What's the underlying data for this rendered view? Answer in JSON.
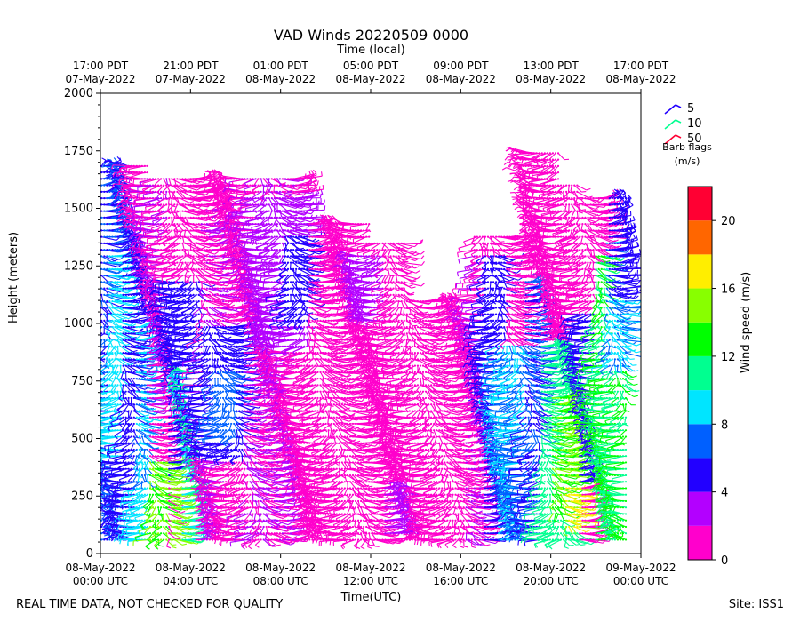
{
  "chart_data": {
    "type": "wind_barb_time_height",
    "title": "VAD Winds 20220509 0000",
    "xlabel": "Time(UTC)",
    "xlabel_top": "Time (local)",
    "ylabel": "Height (meters)",
    "ylim": [
      0,
      2000
    ],
    "yticks": [
      "0",
      "250",
      "500",
      "750",
      "1000",
      "1250",
      "1500",
      "1750",
      "2000"
    ],
    "xlim_hours_since_start": [
      0,
      24
    ],
    "xticks_bottom": [
      {
        "hour": 0,
        "line1": "08-May-2022",
        "line2": "00:00 UTC"
      },
      {
        "hour": 4,
        "line1": "08-May-2022",
        "line2": "04:00 UTC"
      },
      {
        "hour": 8,
        "line1": "08-May-2022",
        "line2": "08:00 UTC"
      },
      {
        "hour": 12,
        "line1": "08-May-2022",
        "line2": "12:00 UTC"
      },
      {
        "hour": 16,
        "line1": "08-May-2022",
        "line2": "16:00 UTC"
      },
      {
        "hour": 20,
        "line1": "08-May-2022",
        "line2": "20:00 UTC"
      },
      {
        "hour": 24,
        "line1": "09-May-2022",
        "line2": "00:00 UTC"
      }
    ],
    "xticks_top": [
      {
        "hour": 0,
        "line1": "17:00 PDT",
        "line2": "07-May-2022"
      },
      {
        "hour": 4,
        "line1": "21:00 PDT",
        "line2": "07-May-2022"
      },
      {
        "hour": 8,
        "line1": "01:00 PDT",
        "line2": "08-May-2022"
      },
      {
        "hour": 12,
        "line1": "05:00 PDT",
        "line2": "08-May-2022"
      },
      {
        "hour": 16,
        "line1": "09:00 PDT",
        "line2": "08-May-2022"
      },
      {
        "hour": 20,
        "line1": "13:00 PDT",
        "line2": "08-May-2022"
      },
      {
        "hour": 24,
        "line1": "17:00 PDT",
        "line2": "08-May-2022"
      }
    ],
    "colorbar": {
      "label": "Wind speed (m/s)",
      "range": [
        0,
        22
      ],
      "ticks": [
        "0",
        "4",
        "8",
        "12",
        "16",
        "20"
      ],
      "bins": [
        {
          "from": 0,
          "to": 2,
          "color": "#ff00cc"
        },
        {
          "from": 2,
          "to": 4,
          "color": "#b300ff"
        },
        {
          "from": 4,
          "to": 6,
          "color": "#2200ff"
        },
        {
          "from": 6,
          "to": 8,
          "color": "#0060ff"
        },
        {
          "from": 8,
          "to": 10,
          "color": "#00e5ff"
        },
        {
          "from": 10,
          "to": 12,
          "color": "#00ff90"
        },
        {
          "from": 12,
          "to": 14,
          "color": "#00ff00"
        },
        {
          "from": 14,
          "to": 16,
          "color": "#88ff00"
        },
        {
          "from": 16,
          "to": 18,
          "color": "#ffee00"
        },
        {
          "from": 18,
          "to": 20,
          "color": "#ff6600"
        },
        {
          "from": 20,
          "to": 22,
          "color": "#ff0033"
        }
      ]
    },
    "barb_legend": {
      "items": [
        {
          "value": "5",
          "color": "#2200ff"
        },
        {
          "value": "10",
          "color": "#00ff90"
        },
        {
          "value": "50",
          "color": "#ff0033"
        }
      ],
      "caption_line1": "Barb flags",
      "caption_line2": "(m/s)"
    },
    "speed_regions": [
      {
        "t0": 0.0,
        "t1": 1.4,
        "h0": 60,
        "h1": 1700,
        "speed": 6
      },
      {
        "t0": 0.3,
        "t1": 1.1,
        "h0": 400,
        "h1": 1300,
        "speed": 9
      },
      {
        "t0": 1.0,
        "t1": 2.2,
        "h0": 60,
        "h1": 1380,
        "speed": 5
      },
      {
        "t0": 1.5,
        "t1": 2.2,
        "h0": 300,
        "h1": 1000,
        "speed": 8
      },
      {
        "t0": 1.6,
        "t1": 2.8,
        "h0": 60,
        "h1": 300,
        "speed": 9
      },
      {
        "t0": 2.0,
        "t1": 3.0,
        "h0": 600,
        "h1": 1650,
        "speed": 2
      },
      {
        "t0": 2.2,
        "t1": 3.0,
        "h0": 60,
        "h1": 400,
        "speed": 14
      },
      {
        "t0": 3.0,
        "t1": 4.6,
        "h0": 300,
        "h1": 1200,
        "speed": 5
      },
      {
        "t0": 3.1,
        "t1": 3.8,
        "h0": 60,
        "h1": 350,
        "speed": 15
      },
      {
        "t0": 3.6,
        "t1": 4.2,
        "h0": 60,
        "h1": 800,
        "speed": 10
      },
      {
        "t0": 4.4,
        "t1": 5.6,
        "h0": 60,
        "h1": 1500,
        "speed": 2
      },
      {
        "t0": 4.6,
        "t1": 6.4,
        "h0": 400,
        "h1": 1000,
        "speed": 5
      },
      {
        "t0": 5.0,
        "t1": 6.0,
        "h0": 500,
        "h1": 800,
        "speed": 7
      },
      {
        "t0": 6.4,
        "t1": 8.6,
        "h0": 60,
        "h1": 1650,
        "speed": 2
      },
      {
        "t0": 7.0,
        "t1": 9.2,
        "h0": 900,
        "h1": 1550,
        "speed": 3
      },
      {
        "t0": 8.2,
        "t1": 9.2,
        "h0": 1000,
        "h1": 1400,
        "speed": 5
      },
      {
        "t0": 9.2,
        "t1": 13.6,
        "h0": 60,
        "h1": 1450,
        "speed": 1
      },
      {
        "t0": 11.0,
        "t1": 12.6,
        "h0": 1000,
        "h1": 1300,
        "speed": 3
      },
      {
        "t0": 13.6,
        "t1": 16.8,
        "h0": 60,
        "h1": 1100,
        "speed": 1
      },
      {
        "t0": 12.6,
        "t1": 14.2,
        "h0": 80,
        "h1": 300,
        "speed": 3
      },
      {
        "t0": 16.2,
        "t1": 17.4,
        "h0": 60,
        "h1": 1300,
        "speed": 2
      },
      {
        "t0": 17.0,
        "t1": 18.0,
        "h0": 60,
        "h1": 1300,
        "speed": 5
      },
      {
        "t0": 17.6,
        "t1": 18.8,
        "h0": 60,
        "h1": 900,
        "speed": 8
      },
      {
        "t0": 18.8,
        "t1": 19.6,
        "h0": 60,
        "h1": 1250,
        "speed": 6
      },
      {
        "t0": 18.4,
        "t1": 20.0,
        "h0": 1200,
        "h1": 1750,
        "speed": 1
      },
      {
        "t0": 19.6,
        "t1": 21.2,
        "h0": 60,
        "h1": 900,
        "speed": 11
      },
      {
        "t0": 20.0,
        "t1": 21.4,
        "h0": 150,
        "h1": 700,
        "speed": 14
      },
      {
        "t0": 20.6,
        "t1": 21.4,
        "h0": 100,
        "h1": 300,
        "speed": 16
      },
      {
        "t0": 21.2,
        "t1": 22.2,
        "h0": 300,
        "h1": 1050,
        "speed": 5
      },
      {
        "t0": 21.0,
        "t1": 22.0,
        "h0": 1050,
        "h1": 1650,
        "speed": 1
      },
      {
        "t0": 22.0,
        "t1": 23.4,
        "h0": 60,
        "h1": 1300,
        "speed": 12
      },
      {
        "t0": 22.4,
        "t1": 23.4,
        "h0": 800,
        "h1": 1350,
        "speed": 8
      },
      {
        "t0": 22.6,
        "t1": 23.4,
        "h0": 1100,
        "h1": 1550,
        "speed": 5
      }
    ],
    "base_speed": 1
  },
  "footer": {
    "left": "REAL TIME DATA, NOT CHECKED FOR QUALITY",
    "right": "Site: ISS1"
  }
}
